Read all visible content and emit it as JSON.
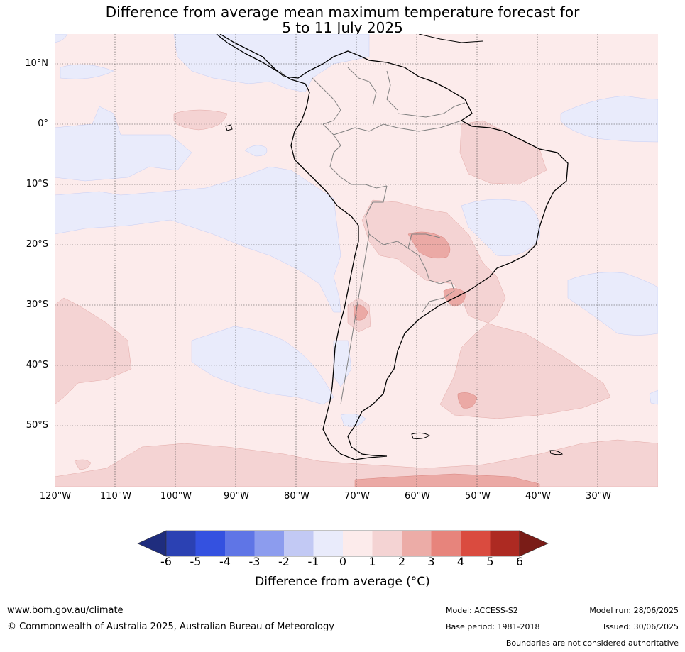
{
  "title": {
    "line1": "Difference from average mean maximum temperature forecast for",
    "line2": "5 to 11 July 2025"
  },
  "map": {
    "lat_labels": [
      "10°N",
      "0°",
      "10°S",
      "20°S",
      "30°S",
      "40°S",
      "50°S"
    ],
    "lon_labels": [
      "120°W",
      "110°W",
      "100°W",
      "90°W",
      "80°W",
      "70°W",
      "60°W",
      "50°W",
      "40°W",
      "30°W"
    ],
    "colors": {
      "neutral_pos": "#fcebeb",
      "neutral_neg": "#e9ebfb",
      "warm_1": "#f4d3d3",
      "warm_2": "#eba9a5",
      "cool_edge": "#c5cdf4",
      "coast": "#000000",
      "border": "#808080",
      "grid": "#444444"
    }
  },
  "legend": {
    "ticks": [
      "-6",
      "-5",
      "-4",
      "-3",
      "-2",
      "-1",
      "0",
      "1",
      "2",
      "3",
      "4",
      "5",
      "6"
    ],
    "label": "Difference from average (°C)",
    "colors": [
      "#1f2d7e",
      "#2b41b3",
      "#3451e0",
      "#5f75e6",
      "#8c9cee",
      "#c2c9f4",
      "#e9ebfb",
      "#fcebeb",
      "#f4d3d3",
      "#ecaca7",
      "#e7847c",
      "#da4b3f",
      "#ad2a22",
      "#7a1c17"
    ]
  },
  "footer": {
    "website": "www.bom.gov.au/climate",
    "copyright": "© Commonwealth of Australia 2025, Australian Bureau of Meteorology",
    "model": "Model: ACCESS-S2",
    "base_period": "Base period: 1981-2018",
    "model_run": "Model run: 28/06/2025",
    "issued": "Issued: 30/06/2025",
    "disclaimer": "Boundaries are not considered authoritative"
  }
}
